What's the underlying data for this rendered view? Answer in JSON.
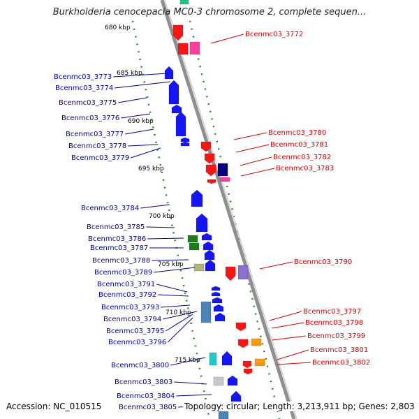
{
  "title": "Burkholderia cenocepacia MC0-3 chromosome 2, complete sequen...",
  "footer": {
    "accession": "Accession: NC_010515",
    "topology": "Topology: circular; Length: 3,213,911 bp; Genes: 2,803"
  },
  "scale_labels": [
    "680 kbp",
    "685 kbp",
    "690 kbp",
    "695 kbp",
    "700 kbp",
    "705 kbp",
    "710 kbp",
    "715 kbp"
  ],
  "left_genes": [
    "Bcenmc03_3773",
    "Bcenmc03_3774",
    "Bcenmc03_3775",
    "Bcenmc03_3776",
    "Bcenmc03_3777",
    "Bcenmc03_3778",
    "Bcenmc03_3779",
    "Bcenmc03_3784",
    "Bcenmc03_3785",
    "Bcenmc03_3786",
    "Bcenmc03_3787",
    "Bcenmc03_3788",
    "Bcenmc03_3789",
    "Bcenmc03_3791",
    "Bcenmc03_3792",
    "Bcenmc03_3793",
    "Bcenmc03_3794",
    "Bcenmc03_3795",
    "Bcenmc03_3796",
    "Bcenmc03_3800",
    "Bcenmc03_3803",
    "Bcenmc03_3804",
    "Bcenmc03_3805"
  ],
  "right_genes": [
    "Bcenmc03_3772",
    "Bcenmc03_3780",
    "Bcenmc03_3781",
    "Bcenmc03_3782",
    "Bcenmc03_3783",
    "Bcenmc03_3790",
    "Bcenmc03_3797",
    "Bcenmc03_3798",
    "Bcenmc03_3799",
    "Bcenmc03_3801",
    "Bcenmc03_3802"
  ],
  "colors": {
    "backbone": "#8f8f8f",
    "left_label": "#00009a",
    "right_label": "#d40000",
    "dotted_track": "#1f8f1f",
    "forward_gene": "#1414ff",
    "reverse_gene": "#ff1414"
  }
}
